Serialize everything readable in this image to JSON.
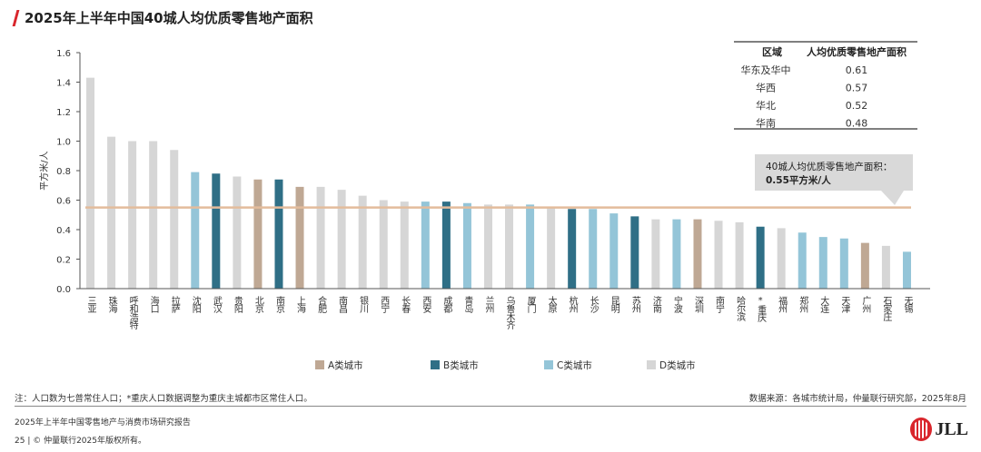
{
  "title": "2025年上半年中国40城人均优质零售地产面积",
  "chart_data": {
    "type": "bar",
    "ylabel": "平方米/人",
    "ylim": [
      0,
      1.6
    ],
    "yticks": [
      0.0,
      0.2,
      0.4,
      0.6,
      0.8,
      1.0,
      1.2,
      1.4,
      1.6
    ],
    "categories": [
      "三亚",
      "珠海",
      "呼和浩特",
      "海口",
      "拉萨",
      "沈阳",
      "武汉",
      "贵阳",
      "北京",
      "南京",
      "上海",
      "合肥",
      "南昌",
      "银川",
      "西宁",
      "长春",
      "西安",
      "成都",
      "青岛",
      "兰州",
      "乌鲁木齐",
      "厦门",
      "太原",
      "杭州",
      "长沙",
      "昆明",
      "苏州",
      "济南",
      "宁波",
      "深圳",
      "南宁",
      "哈尔滨",
      "*重庆",
      "福州",
      "郑州",
      "大连",
      "天津",
      "广州",
      "石家庄",
      "无锡"
    ],
    "values": [
      1.43,
      1.03,
      1.0,
      1.0,
      0.94,
      0.79,
      0.78,
      0.76,
      0.74,
      0.74,
      0.69,
      0.69,
      0.67,
      0.63,
      0.6,
      0.59,
      0.59,
      0.59,
      0.58,
      0.57,
      0.57,
      0.57,
      0.55,
      0.54,
      0.54,
      0.51,
      0.49,
      0.47,
      0.47,
      0.47,
      0.46,
      0.45,
      0.42,
      0.41,
      0.38,
      0.35,
      0.34,
      0.31,
      0.29,
      0.25
    ],
    "groups": [
      "D",
      "D",
      "D",
      "D",
      "D",
      "C",
      "B",
      "D",
      "A",
      "B",
      "A",
      "D",
      "D",
      "D",
      "D",
      "D",
      "C",
      "B",
      "C",
      "D",
      "D",
      "C",
      "D",
      "B",
      "C",
      "C",
      "B",
      "D",
      "C",
      "A",
      "D",
      "D",
      "B",
      "D",
      "C",
      "C",
      "C",
      "A",
      "D",
      "C"
    ],
    "legend": [
      {
        "key": "A",
        "label": "A类城市",
        "color": "#bfa894"
      },
      {
        "key": "B",
        "label": "B类城市",
        "color": "#2f6f86"
      },
      {
        "key": "C",
        "label": "C类城市",
        "color": "#94c5d8"
      },
      {
        "key": "D",
        "label": "D类城市",
        "color": "#d6d6d6"
      }
    ],
    "legend_position": "bottom",
    "average_line": {
      "value": 0.55,
      "color": "#e3bc9c"
    },
    "callout": {
      "line1": "40城人均优质零售地产面积：",
      "line2": "0.55平方米/人"
    },
    "grid": false
  },
  "region_table": {
    "headers": [
      "区域",
      "人均优质零售地产面积"
    ],
    "rows": [
      [
        "华东及华中",
        "0.61"
      ],
      [
        "华西",
        "0.57"
      ],
      [
        "华北",
        "0.52"
      ],
      [
        "华南",
        "0.48"
      ]
    ]
  },
  "note": "注：人口数为七普常住人口；*重庆人口数据调整为重庆主城都市区常住人口。",
  "source": "数据来源：各城市统计局，仲量联行研究部，2025年8月",
  "footer": {
    "report": "2025年上半年中国零售地产与消费市场研究报告",
    "page": "25 | © 仲量联行2025年版权所有。",
    "logo": "JLL"
  }
}
